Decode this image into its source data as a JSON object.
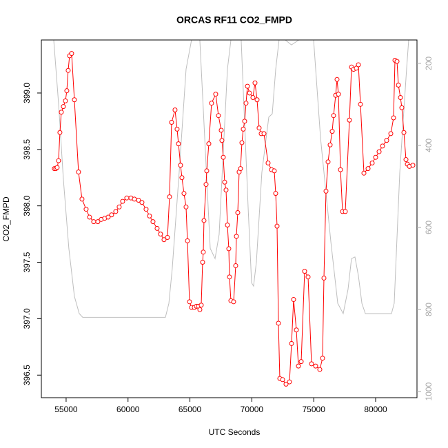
{
  "chart_data": {
    "type": "line",
    "title": "ORCAS RF11 CO2_FMPD",
    "xlabel": "UTC Seconds",
    "ylabel": "CO2_FMPD",
    "xlim": [
      53000,
      83340
    ],
    "ylim": [
      396.3,
      399.47
    ],
    "y2lim": [
      1015,
      143
    ],
    "xticks": [
      55000,
      60000,
      65000,
      70000,
      75000,
      80000
    ],
    "yticks": [
      396.5,
      {
        "value": 397.0,
        "label": "397.0"
      },
      397.5,
      {
        "value": 398.0,
        "label": "398.0"
      },
      398.5,
      {
        "value": 399.0,
        "label": "399.0"
      }
    ],
    "y2ticks": [
      200,
      400,
      600,
      800,
      1000
    ],
    "series": [
      {
        "color": "#bebebe",
        "axis": "y2",
        "marker": false,
        "x": [
          54000,
          54390,
          54780,
          55220,
          55670,
          56060,
          56340,
          63020,
          63300,
          63570,
          64130,
          64690,
          65130,
          65800,
          66640,
          67030,
          67360,
          67750,
          68030,
          68310,
          69140,
          69700,
          69980,
          70140,
          70370,
          70810,
          71370,
          71650,
          71930,
          72200,
          72700,
          73200,
          73800,
          74400,
          74990,
          75550,
          76380,
          76940,
          77380,
          77770,
          78050,
          78330,
          78610,
          78890,
          79170,
          81280,
          81500,
          81950,
          82500,
          82670
        ],
        "values": [
          143,
          298,
          483,
          651,
          768,
          810,
          819,
          819,
          785,
          701,
          466,
          214,
          143,
          143,
          651,
          676,
          617,
          382,
          214,
          143,
          143,
          550,
          735,
          743,
          684,
          466,
          331,
          323,
          214,
          143,
          143,
          155,
          143,
          143,
          143,
          382,
          634,
          785,
          810,
          751,
          676,
          672,
          718,
          785,
          810,
          810,
          785,
          466,
          214,
          143
        ]
      },
      {
        "color": "#ff0000",
        "axis": "y",
        "marker": true,
        "x": [
          54053,
          54165,
          54276,
          54388,
          54499,
          54610,
          54777,
          54944,
          55056,
          55167,
          55278,
          55445,
          55668,
          56002,
          56281,
          56615,
          56893,
          57227,
          57561,
          57840,
          58118,
          58396,
          58675,
          59009,
          59287,
          59566,
          59900,
          60234,
          60512,
          60846,
          61125,
          61459,
          61737,
          62016,
          62350,
          62628,
          62907,
          63185,
          63352,
          63519,
          63797,
          63964,
          64076,
          64243,
          64354,
          64521,
          64688,
          64800,
          64967,
          65134,
          65356,
          65524,
          65691,
          65802,
          65913,
          66025,
          66080,
          66136,
          66303,
          66359,
          66526,
          66748,
          67083,
          67305,
          67528,
          67584,
          67695,
          67807,
          67918,
          68029,
          68140,
          68196,
          68308,
          68530,
          68697,
          68753,
          68864,
          68976,
          69087,
          69198,
          69310,
          69421,
          69532,
          69644,
          69811,
          70089,
          70256,
          70423,
          70590,
          70757,
          70980,
          71314,
          71593,
          71815,
          71927,
          72038,
          72149,
          72261,
          72484,
          72762,
          73040,
          73207,
          73374,
          73597,
          73764,
          73987,
          74265,
          74544,
          74822,
          75156,
          75490,
          75713,
          75824,
          75991,
          76158,
          76325,
          76492,
          76604,
          76771,
          76882,
          76994,
          77161,
          77328,
          77550,
          77884,
          78052,
          78219,
          78441,
          78608,
          78775,
          79054,
          79388,
          79722,
          80000,
          80279,
          80557,
          80891,
          81225,
          81448,
          81560,
          81726,
          81838,
          82005,
          82116,
          82283,
          82450,
          82562,
          82729,
          83007
        ],
        "values": [
          398.33,
          398.33,
          398.34,
          398.4,
          398.65,
          398.83,
          398.88,
          398.93,
          399.02,
          399.2,
          399.33,
          399.35,
          398.94,
          398.3,
          398.06,
          397.97,
          397.9,
          397.86,
          397.86,
          397.88,
          397.89,
          397.9,
          397.92,
          397.95,
          397.99,
          398.04,
          398.07,
          398.07,
          398.06,
          398.05,
          398.03,
          397.97,
          397.91,
          397.86,
          397.8,
          397.75,
          397.7,
          397.72,
          398.08,
          398.74,
          398.85,
          398.68,
          398.55,
          398.36,
          398.25,
          398.11,
          397.99,
          397.69,
          397.15,
          397.1,
          397.1,
          397.11,
          397.11,
          397.08,
          397.12,
          397.5,
          397.59,
          397.87,
          398.19,
          398.31,
          398.55,
          398.91,
          398.99,
          398.8,
          398.67,
          398.58,
          398.43,
          398.21,
          398.14,
          397.83,
          397.62,
          397.37,
          397.16,
          397.15,
          397.47,
          397.73,
          397.94,
          398.3,
          398.33,
          398.56,
          398.68,
          398.75,
          398.91,
          399.06,
          399.0,
          398.96,
          399.09,
          398.94,
          398.69,
          398.64,
          398.64,
          398.38,
          398.32,
          398.31,
          398.11,
          397.82,
          396.96,
          396.47,
          396.46,
          396.42,
          396.44,
          396.78,
          397.17,
          396.9,
          396.58,
          396.62,
          397.42,
          397.37,
          396.6,
          396.58,
          396.55,
          396.65,
          397.36,
          398.13,
          398.39,
          398.54,
          398.66,
          398.8,
          398.98,
          399.12,
          398.99,
          398.32,
          397.95,
          397.95,
          398.76,
          399.23,
          399.21,
          399.22,
          399.25,
          398.9,
          398.29,
          398.33,
          398.38,
          398.43,
          398.48,
          398.53,
          398.58,
          398.64,
          398.78,
          399.29,
          399.28,
          399.07,
          398.96,
          398.87,
          398.65,
          398.41,
          398.37,
          398.35,
          398.36
        ]
      }
    ]
  }
}
